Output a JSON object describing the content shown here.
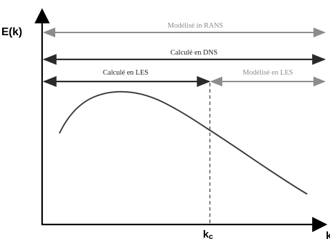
{
  "diagram": {
    "y_axis_label": "E(k)",
    "x_axis_label": "k",
    "cutoff_label": "k",
    "cutoff_subscript": "c",
    "ranges": {
      "rans_label": "Modélisé in RANS",
      "dns_label": "Calculé en DNS",
      "les_computed_label": "Calculé en LES",
      "les_modeled_label": "Modélisé en LES"
    },
    "colors": {
      "axis": "#000000",
      "curve": "#3c3c3c",
      "dark_arrow": "#2a2a2a",
      "grey_arrow": "#8c8c8c",
      "grey_text": "#8c8c8c",
      "dark_text": "#222222"
    }
  }
}
